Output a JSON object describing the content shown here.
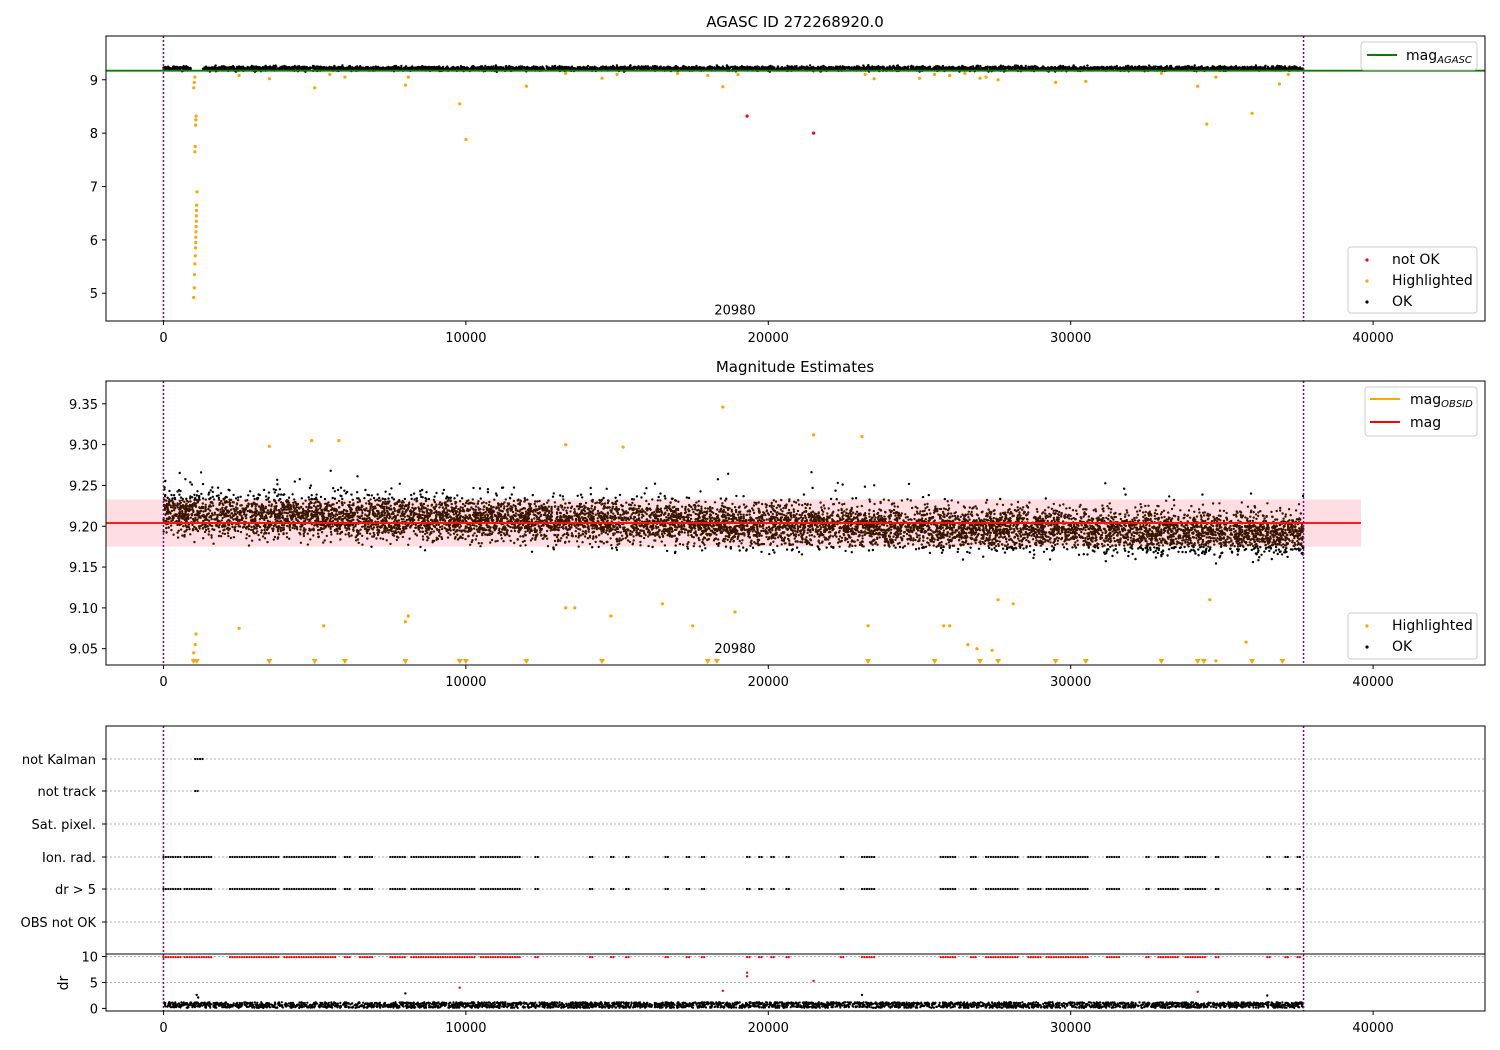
{
  "colors": {
    "agasc_line": "#008000",
    "obsid_line": "#ffa500",
    "mag_line": "#ff0000",
    "band": "#ffb6c1",
    "highlighted": "#ffa500",
    "not_ok": "#ff0000",
    "ok": "#000000",
    "boundary": "#800080",
    "grid": "#b0b0b0"
  },
  "chart_data": [
    {
      "type": "scatter",
      "title": "AGASC ID 272268920.0",
      "xlim": [
        -1900,
        43700
      ],
      "ylim": [
        4.48,
        9.82
      ],
      "xticks": [
        0,
        10000,
        20000,
        30000,
        40000
      ],
      "xtick_labels": [
        "0",
        "10000",
        "20000",
        "30000",
        "40000"
      ],
      "yticks": [
        5,
        6,
        7,
        8,
        9
      ],
      "ytick_labels": [
        "5",
        "6",
        "7",
        "8",
        "9"
      ],
      "annotation": {
        "text": "20980",
        "x": 18900,
        "y": 4.6
      },
      "vlines": [
        0,
        37700
      ],
      "hlines": [
        {
          "name": "mag_AGASC",
          "y": 9.17,
          "color": "green"
        }
      ],
      "ok_band": {
        "x_start": 0,
        "x_end": 37700,
        "center": 9.21,
        "half_width": 0.06
      },
      "series": [
        {
          "name": "not OK",
          "points": [
            [
              19300,
              8.32
            ],
            [
              21500,
              8.0
            ]
          ]
        },
        {
          "name": "Highlighted",
          "points": [
            [
              1000,
              4.92
            ],
            [
              1020,
              5.1
            ],
            [
              1030,
              5.35
            ],
            [
              1040,
              5.55
            ],
            [
              1050,
              5.7
            ],
            [
              1060,
              5.85
            ],
            [
              1065,
              5.95
            ],
            [
              1070,
              6.05
            ],
            [
              1075,
              6.15
            ],
            [
              1080,
              6.25
            ],
            [
              1085,
              6.35
            ],
            [
              1090,
              6.45
            ],
            [
              1095,
              6.55
            ],
            [
              1100,
              6.65
            ],
            [
              1110,
              6.9
            ],
            [
              1040,
              7.65
            ],
            [
              1050,
              7.75
            ],
            [
              1060,
              8.15
            ],
            [
              1070,
              8.25
            ],
            [
              1080,
              8.32
            ],
            [
              1000,
              8.85
            ],
            [
              1020,
              8.95
            ],
            [
              1040,
              9.05
            ],
            [
              2500,
              9.08
            ],
            [
              3500,
              9.02
            ],
            [
              5000,
              8.85
            ],
            [
              5500,
              9.1
            ],
            [
              6000,
              9.05
            ],
            [
              8000,
              8.9
            ],
            [
              8100,
              9.05
            ],
            [
              9800,
              8.55
            ],
            [
              10000,
              7.88
            ],
            [
              12000,
              8.88
            ],
            [
              13300,
              9.12
            ],
            [
              14500,
              9.03
            ],
            [
              15000,
              9.1
            ],
            [
              17000,
              9.12
            ],
            [
              18000,
              9.08
            ],
            [
              18500,
              8.87
            ],
            [
              19000,
              9.1
            ],
            [
              23200,
              9.1
            ],
            [
              23500,
              9.02
            ],
            [
              25000,
              9.03
            ],
            [
              25500,
              9.1
            ],
            [
              26000,
              9.08
            ],
            [
              26500,
              9.12
            ],
            [
              27000,
              9.03
            ],
            [
              27200,
              9.05
            ],
            [
              27600,
              9.0
            ],
            [
              29500,
              8.95
            ],
            [
              30500,
              8.97
            ],
            [
              33000,
              9.12
            ],
            [
              34200,
              8.88
            ],
            [
              34500,
              8.17
            ],
            [
              34800,
              9.05
            ],
            [
              36000,
              8.37
            ],
            [
              36900,
              8.92
            ],
            [
              37200,
              9.1
            ]
          ]
        },
        {
          "name": "OK",
          "dense_band": {
            "x_start": 0,
            "x_end": 37700,
            "center": 9.21,
            "half_width": 0.06,
            "gap": [
              900,
              1300
            ]
          }
        }
      ],
      "legends": [
        [
          "mag_AGASC"
        ],
        [
          "not OK",
          "Highlighted",
          "OK"
        ]
      ],
      "legend_labels": {
        "mag_sub": "AGASC",
        "mag_main": "mag",
        "not_ok": "not OK",
        "highlighted": "Highlighted",
        "ok": "OK"
      },
      "legend_placement": [
        "top-right",
        "bottom-right"
      ]
    },
    {
      "type": "scatter",
      "title": "Magnitude Estimates",
      "xlim": [
        -1900,
        43700
      ],
      "ylim": [
        9.03,
        9.378
      ],
      "xticks": [
        0,
        10000,
        20000,
        30000,
        40000
      ],
      "xtick_labels": [
        "0",
        "10000",
        "20000",
        "30000",
        "40000"
      ],
      "yticks": [
        9.05,
        9.1,
        9.15,
        9.2,
        9.25,
        9.3,
        9.35
      ],
      "ytick_labels": [
        "9.05",
        "9.10",
        "9.15",
        "9.20",
        "9.25",
        "9.30",
        "9.35"
      ],
      "annotation": {
        "text": "20980",
        "x": 18900,
        "y": 9.045
      },
      "vlines": [
        0,
        37700
      ],
      "hlines": [
        {
          "name": "mag",
          "y": 9.204,
          "color": "red"
        }
      ],
      "mag_obsid": {
        "x_start": 0,
        "x_end": 37700,
        "y": 9.204
      },
      "mag_band": {
        "x_start": -1900,
        "x_end": 39600,
        "y_low": 9.175,
        "y_high": 9.233
      },
      "ok_band": {
        "x_start": 0,
        "x_end": 37700,
        "center_start": 9.215,
        "center_end": 9.19,
        "spread": 0.05
      },
      "series": [
        {
          "name": "Highlighted",
          "points": [
            [
              1000,
              9.035
            ],
            [
              1000,
              9.045
            ],
            [
              1050,
              9.055
            ],
            [
              1080,
              9.068
            ],
            [
              2500,
              9.075
            ],
            [
              5300,
              9.078
            ],
            [
              8000,
              9.083
            ],
            [
              8100,
              9.09
            ],
            [
              13300,
              9.1
            ],
            [
              13600,
              9.1
            ],
            [
              14800,
              9.09
            ],
            [
              16500,
              9.105
            ],
            [
              17500,
              9.078
            ],
            [
              18900,
              9.095
            ],
            [
              23300,
              9.078
            ],
            [
              25800,
              9.078
            ],
            [
              26000,
              9.078
            ],
            [
              26600,
              9.055
            ],
            [
              26900,
              9.05
            ],
            [
              27400,
              9.048
            ],
            [
              27600,
              9.11
            ],
            [
              28100,
              9.105
            ],
            [
              34600,
              9.11
            ],
            [
              34800,
              9.035
            ],
            [
              35800,
              9.058
            ],
            [
              18500,
              9.346
            ],
            [
              21500,
              9.312
            ],
            [
              23100,
              9.31
            ],
            [
              4900,
              9.305
            ],
            [
              5800,
              9.305
            ],
            [
              13300,
              9.3
            ],
            [
              15200,
              9.297
            ],
            [
              3500,
              9.298
            ]
          ]
        },
        {
          "name": "below-range markers",
          "x": [
            1000,
            1100,
            3500,
            5000,
            6000,
            8000,
            9800,
            10000,
            12000,
            14500,
            18000,
            18300,
            23300,
            25500,
            27000,
            27600,
            29500,
            30500,
            33000,
            34200,
            34400,
            36000,
            37000
          ]
        },
        {
          "name": "OK",
          "dense_band": {
            "x_start": 0,
            "x_end": 37700,
            "center_start": 9.215,
            "center_end": 9.19,
            "spread": 0.05
          }
        }
      ],
      "legends": [
        [
          "mag_OBSID",
          "mag"
        ],
        [
          "Highlighted",
          "OK"
        ]
      ],
      "legend_labels": {
        "mag_obsid_main": "mag",
        "mag_obsid_sub": "OBSID",
        "mag": "mag",
        "highlighted": "Highlighted",
        "ok": "OK"
      },
      "legend_placement": [
        "top-right",
        "bottom-right"
      ]
    },
    {
      "type": "scatter",
      "title": "",
      "xlim": [
        -1900,
        43700
      ],
      "ylabels": [
        "not Kalman",
        "not track",
        "Sat. pixel.",
        "Ion. rad.",
        "dr > 5",
        "OBS not OK"
      ],
      "vlines": [
        0,
        37700
      ],
      "flags": {
        "not Kalman": [
          [
            1050,
            1300
          ]
        ],
        "not track": [
          [
            0,
            40
          ],
          [
            1050,
            1150
          ]
        ],
        "Sat. pixel.": [],
        "Ion. rad.": [
          [
            0,
            600
          ],
          [
            700,
            1600
          ],
          [
            2200,
            3800
          ],
          [
            4000,
            5700
          ],
          [
            6000,
            6200
          ],
          [
            6500,
            6900
          ],
          [
            7500,
            8000
          ],
          [
            8200,
            10300
          ],
          [
            10500,
            11800
          ],
          [
            12300,
            12400
          ],
          [
            14100,
            14200
          ],
          [
            14800,
            14900
          ],
          [
            15300,
            15400
          ],
          [
            16600,
            16700
          ],
          [
            17300,
            17400
          ],
          [
            17800,
            17900
          ],
          [
            19300,
            19400
          ],
          [
            19700,
            19800
          ],
          [
            20100,
            20200
          ],
          [
            20600,
            20700
          ],
          [
            22400,
            22500
          ],
          [
            23100,
            23500
          ],
          [
            25700,
            26200
          ],
          [
            26700,
            26900
          ],
          [
            27200,
            28300
          ],
          [
            28600,
            29000
          ],
          [
            29200,
            30600
          ],
          [
            31200,
            31600
          ],
          [
            32500,
            32600
          ],
          [
            32900,
            33600
          ],
          [
            33800,
            34500
          ],
          [
            34800,
            34900
          ],
          [
            36500,
            36600
          ],
          [
            37100,
            37200
          ],
          [
            37500,
            37600
          ]
        ],
        "dr > 5": [
          [
            0,
            600
          ],
          [
            700,
            1600
          ],
          [
            2200,
            3800
          ],
          [
            4000,
            5700
          ],
          [
            6000,
            6200
          ],
          [
            6500,
            6900
          ],
          [
            7500,
            8000
          ],
          [
            8200,
            10300
          ],
          [
            10500,
            11800
          ],
          [
            12300,
            12400
          ],
          [
            14100,
            14200
          ],
          [
            14800,
            14900
          ],
          [
            15300,
            15400
          ],
          [
            16600,
            16700
          ],
          [
            17300,
            17400
          ],
          [
            17800,
            17900
          ],
          [
            19300,
            19400
          ],
          [
            19700,
            19800
          ],
          [
            20100,
            20200
          ],
          [
            20600,
            20700
          ],
          [
            22400,
            22500
          ],
          [
            23100,
            23500
          ],
          [
            25700,
            26200
          ],
          [
            26700,
            26900
          ],
          [
            27200,
            28300
          ],
          [
            28600,
            29000
          ],
          [
            29200,
            30600
          ],
          [
            31200,
            31600
          ],
          [
            32500,
            32600
          ],
          [
            32900,
            33600
          ],
          [
            33800,
            34500
          ],
          [
            34800,
            34900
          ],
          [
            36500,
            36600
          ],
          [
            37100,
            37200
          ],
          [
            37500,
            37600
          ]
        ],
        "OBS not OK": []
      }
    },
    {
      "type": "scatter",
      "ylabel": "dr",
      "xlim": [
        -1900,
        43700
      ],
      "ylim": [
        -0.5,
        10.5
      ],
      "xticks": [
        0,
        10000,
        20000,
        30000,
        40000
      ],
      "xtick_labels": [
        "0",
        "10000",
        "20000",
        "30000",
        "40000"
      ],
      "yticks": [
        0,
        5,
        10
      ],
      "ytick_labels": [
        "0",
        "5",
        "10"
      ],
      "vlines": [
        0,
        37700
      ],
      "series": [
        {
          "name": "dr OK",
          "dense_band": {
            "x_start": 0,
            "x_end": 37700,
            "y_low": 0.1,
            "y_high": 1.2
          }
        },
        {
          "name": "dr above",
          "clip_y": 9.9
        },
        {
          "name": "dr outliers",
          "points": [
            [
              1100,
              2.6
            ],
            [
              1150,
              2.1
            ],
            [
              8000,
              2.9
            ],
            [
              9800,
              4.0
            ],
            [
              18500,
              3.4
            ],
            [
              19300,
              6.9
            ],
            [
              19300,
              6.2
            ],
            [
              21500,
              5.3
            ],
            [
              23100,
              2.6
            ],
            [
              34200,
              3.2
            ],
            [
              36500,
              2.5
            ]
          ]
        }
      ]
    }
  ]
}
